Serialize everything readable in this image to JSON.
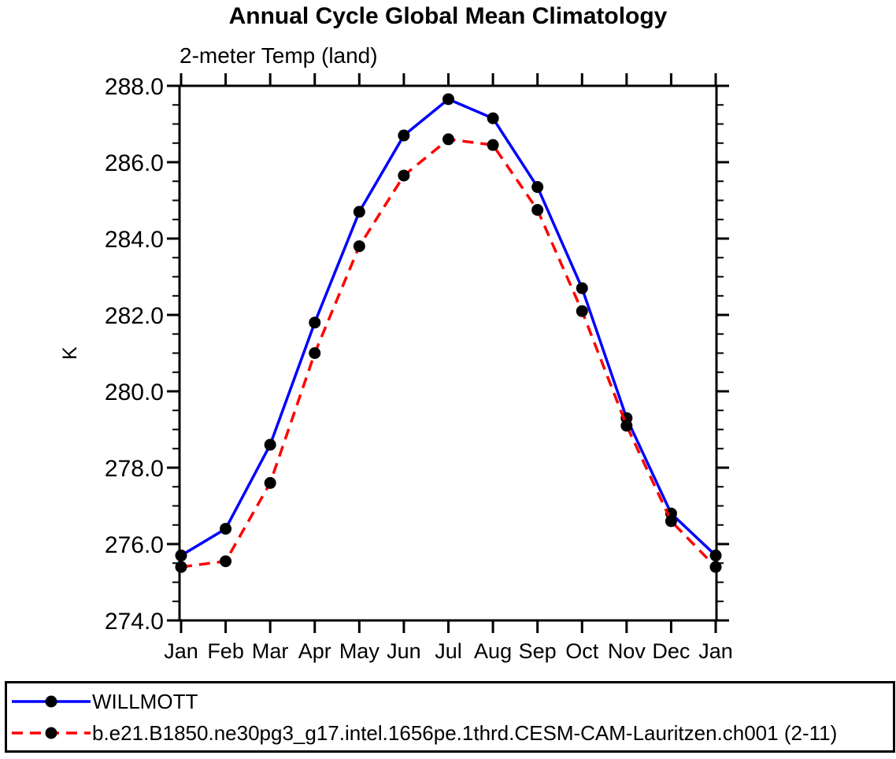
{
  "page": {
    "background": "#ffffff"
  },
  "header": {
    "title": "Annual Cycle Global Mean Climatology",
    "subtitle": "2-meter Temp (land)"
  },
  "chart_data": {
    "type": "line",
    "title": "Annual Cycle Global Mean Climatology",
    "subtitle": "2-meter Temp (land)",
    "xlabel": "",
    "ylabel": "K",
    "x_tick_labels": [
      "Jan",
      "Feb",
      "Mar",
      "Apr",
      "May",
      "Jun",
      "Jul",
      "Aug",
      "Sep",
      "Oct",
      "Nov",
      "Dec",
      "Jan"
    ],
    "ylim": [
      274.0,
      288.0
    ],
    "y_major_ticks": [
      274.0,
      276.0,
      278.0,
      280.0,
      282.0,
      284.0,
      286.0,
      288.0
    ],
    "y_tick_labels": [
      "274.0",
      "276.0",
      "278.0",
      "280.0",
      "282.0",
      "284.0",
      "286.0",
      "288.0"
    ],
    "y_minor_step": 0.5,
    "grid": false,
    "legend_position": "bottom",
    "axis_color": "#000000",
    "marker_color": "#000000",
    "series": [
      {
        "name": "WILLMOTT",
        "color": "#0000ff",
        "style": "solid",
        "marker": "circle",
        "values": [
          275.7,
          276.4,
          278.6,
          281.8,
          284.7,
          286.7,
          287.65,
          287.15,
          285.35,
          282.7,
          279.3,
          276.8,
          275.7
        ]
      },
      {
        "name": "b.e21.B1850.ne30pg3_g17.intel.1656pe.1thrd.CESM-CAM-Lauritzen.ch001 (2-11)",
        "color": "#ff0000",
        "style": "dashed",
        "marker": "circle",
        "values": [
          275.4,
          275.55,
          277.6,
          281.0,
          283.8,
          285.65,
          286.6,
          286.45,
          284.75,
          282.1,
          279.1,
          276.6,
          275.4
        ]
      }
    ]
  }
}
